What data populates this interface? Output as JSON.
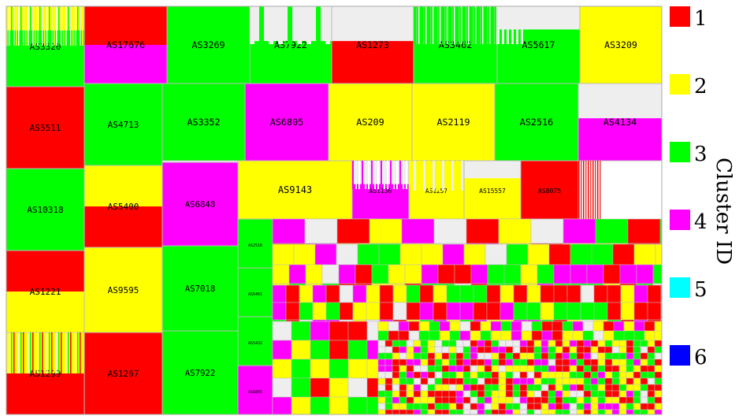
{
  "chart_data": {
    "type": "treemap",
    "legend": {
      "title": "Cluster ID",
      "placement": "right",
      "entries": [
        {
          "id": "1",
          "color": "#ff0000"
        },
        {
          "id": "2",
          "color": "#ffff00"
        },
        {
          "id": "3",
          "color": "#00ff00"
        },
        {
          "id": "4",
          "color": "#ff00ff"
        },
        {
          "id": "5",
          "color": "#00ffff"
        },
        {
          "id": "6",
          "color": "#0000ff"
        }
      ]
    },
    "unclustered_color": "#eeeeee",
    "blocks": [
      {
        "label": "AS3320",
        "mix": [
          "2:0.3",
          "3:0.7"
        ]
      },
      {
        "label": "AS17676",
        "mix": [
          "1:0.5",
          "4:0.5"
        ]
      },
      {
        "label": "AS3269",
        "mix": [
          "3:1"
        ]
      },
      {
        "label": "AS7922",
        "mix": [
          "u:0.45",
          "3:0.55"
        ]
      },
      {
        "label": "AS1273",
        "mix": [
          "u:0.45",
          "1:0.55"
        ]
      },
      {
        "label": "AS3462",
        "mix": [
          "3:1"
        ]
      },
      {
        "label": "AS5617",
        "mix": [
          "u:0.3",
          "3:0.7"
        ]
      },
      {
        "label": "AS3209",
        "mix": [
          "2:1"
        ]
      },
      {
        "label": "AS5511",
        "mix": [
          "1:1"
        ]
      },
      {
        "label": "AS4713",
        "mix": [
          "3:1"
        ]
      },
      {
        "label": "AS3352",
        "mix": [
          "3:1"
        ]
      },
      {
        "label": "AS6805",
        "mix": [
          "4:1"
        ]
      },
      {
        "label": "AS209",
        "mix": [
          "2:1"
        ]
      },
      {
        "label": "AS2119",
        "mix": [
          "2:1"
        ]
      },
      {
        "label": "AS2516",
        "mix": [
          "3:1"
        ]
      },
      {
        "label": "AS4134",
        "mix": [
          "u:0.45",
          "4:0.55"
        ]
      },
      {
        "label": "AS10318",
        "mix": [
          "3:1"
        ]
      },
      {
        "label": "AS5400",
        "mix": [
          "2:0.5",
          "1:0.5"
        ]
      },
      {
        "label": "AS6848",
        "mix": [
          "4:1"
        ]
      },
      {
        "label": "AS9143",
        "mix": [
          "2:1"
        ]
      },
      {
        "label": "AS1136",
        "mix": [
          "u:0.4",
          "4:0.6"
        ]
      },
      {
        "label": "AS1257",
        "mix": [
          "2:1"
        ]
      },
      {
        "label": "AS15557",
        "mix": [
          "u:0.3",
          "2:0.7"
        ]
      },
      {
        "label": "AS8075",
        "mix": [
          "1:1"
        ]
      },
      {
        "label": "AS1221",
        "mix": [
          "1:0.5",
          "2:0.5"
        ]
      },
      {
        "label": "AS9595",
        "mix": [
          "2:1"
        ]
      },
      {
        "label": "AS7018",
        "mix": [
          "3:1"
        ]
      },
      {
        "label": "AS1299",
        "mix": [
          "2:0.5",
          "1:0.5"
        ]
      },
      {
        "label": "AS1267",
        "mix": [
          "1:1"
        ]
      },
      {
        "label": "AS7922",
        "mix": [
          "3:1"
        ]
      }
    ],
    "small_blocks": [
      {
        "label": "AS2516",
        "mix": [
          "3:1"
        ]
      },
      {
        "label": "AS6461",
        "mix": [
          "3:1"
        ]
      },
      {
        "label": "AS5432",
        "mix": [
          "3:1"
        ]
      },
      {
        "label": "AS6805",
        "mix": [
          "4:1"
        ]
      }
    ],
    "note": "Lower-right region contains hundreds of progressively smaller AS blocks with unreadable labels, coloured by cluster."
  }
}
